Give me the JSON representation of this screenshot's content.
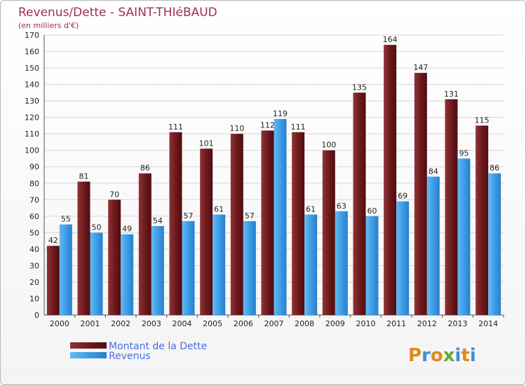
{
  "chart_data": {
    "type": "bar",
    "title": "Revenus/Dette - SAINT-THIéBAUD",
    "subtitle": "(en milliers d'€)",
    "categories": [
      "2000",
      "2001",
      "2002",
      "2003",
      "2004",
      "2005",
      "2006",
      "2007",
      "2008",
      "2009",
      "2010",
      "2011",
      "2012",
      "2013",
      "2014"
    ],
    "series": [
      {
        "name": "Montant de la Dette",
        "color": "#7a1e22",
        "values": [
          42,
          81,
          70,
          86,
          111,
          101,
          110,
          112,
          111,
          100,
          135,
          164,
          147,
          131,
          115
        ]
      },
      {
        "name": "Revenus",
        "color": "#3d9de6",
        "values": [
          55,
          50,
          49,
          54,
          57,
          61,
          57,
          119,
          61,
          63,
          60,
          69,
          84,
          95,
          86
        ]
      }
    ],
    "ylim": [
      0,
      170
    ],
    "yticks": [
      0,
      10,
      20,
      30,
      40,
      50,
      60,
      70,
      80,
      90,
      100,
      110,
      120,
      130,
      140,
      150,
      160,
      170
    ],
    "grid": true,
    "legend_position": "bottom-left"
  },
  "logo": {
    "text": "Proxiti",
    "colors": [
      "#e08a1e",
      "#3a8fd8",
      "#e08a1e",
      "#6aa834",
      "#3a8fd8",
      "#e08a1e",
      "#3a8fd8"
    ]
  }
}
